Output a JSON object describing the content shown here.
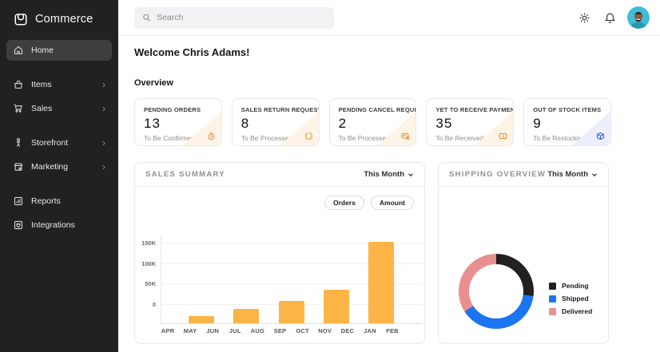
{
  "brand": {
    "name": "Commerce"
  },
  "sidebar": {
    "chevron": "›",
    "items": [
      {
        "label": "Home",
        "icon": "home-icon",
        "active": true,
        "expandable": false
      },
      {
        "label": "Items",
        "icon": "items-icon",
        "active": false,
        "expandable": true
      },
      {
        "label": "Sales",
        "icon": "sales-cart-icon",
        "active": false,
        "expandable": true
      },
      {
        "label": "Storefront",
        "icon": "storefront-icon",
        "active": false,
        "expandable": true
      },
      {
        "label": "Marketing",
        "icon": "marketing-icon",
        "active": false,
        "expandable": true
      },
      {
        "label": "Reports",
        "icon": "reports-icon",
        "active": false,
        "expandable": false
      },
      {
        "label": "Integrations",
        "icon": "integrations-icon",
        "active": false,
        "expandable": false
      }
    ]
  },
  "topbar": {
    "search_placeholder": "Search"
  },
  "main": {
    "welcome": "Welcome Chris Adams!",
    "section_label": "Overview",
    "stat_cards": [
      {
        "title": "PENDING ORDERS",
        "value": "13",
        "subtitle": "To Be Confirmed",
        "icon": "timer-icon",
        "accent": "#EF8F2E",
        "corner_bg": "#FDF3E6"
      },
      {
        "title": "SALES RETURN REQUESTS",
        "value": "8",
        "subtitle": "To Be Processed",
        "icon": "undo-icon",
        "accent": "#EF8F2E",
        "corner_bg": "#FDF3E6"
      },
      {
        "title": "PENDING CANCEL REQUESTS",
        "value": "2",
        "subtitle": "To Be Processed",
        "icon": "cancel-request-icon",
        "accent": "#EF8F2E",
        "corner_bg": "#FDF3E6"
      },
      {
        "title": "YET TO RECEIVE PAYMENTS",
        "value": "35",
        "subtitle": "To Be Received",
        "icon": "payment-card-icon",
        "accent": "#EF8F2E",
        "corner_bg": "#FDF3E6"
      },
      {
        "title": "OUT OF STOCK ITEMS",
        "value": "9",
        "subtitle": "To Be Restocked",
        "icon": "stock-box-icon",
        "accent": "#3D5AD5",
        "corner_bg": "#ECEFFB"
      }
    ]
  },
  "sales_summary": {
    "title": "SALES SUMMARY",
    "period": "This Month",
    "toggles": [
      "Orders",
      "Amount"
    ]
  },
  "shipping_overview": {
    "title": "SHIPPING OVERVIEW",
    "period": "This Month"
  },
  "chart_data": [
    {
      "type": "bar",
      "title": "SALES SUMMARY",
      "x_labels": [
        "APR",
        "MAY",
        "JUN",
        "JUL",
        "AUG",
        "SEP",
        "OCT",
        "NOV",
        "DEC",
        "JAN",
        "FEB"
      ],
      "y_tick_labels": [
        "150K",
        "100K",
        "50K",
        "0"
      ],
      "y_min": -50000,
      "y_max": 170000,
      "grid": true,
      "bar_color": "#FBB445",
      "bars": [
        {
          "from": "MAY",
          "to": "JUN",
          "value": -33000
        },
        {
          "from": "JUL",
          "to": "AUG",
          "value": -14000
        },
        {
          "from": "SEP",
          "to": "OCT",
          "value": 4000
        },
        {
          "from": "NOV",
          "to": "DEC",
          "value": 32000
        },
        {
          "from": "JAN",
          "to": "FEB",
          "value": 150000
        }
      ],
      "note": "bars are rendered rising from the bottom of the plot (y_min = -50K, unlabeled)"
    },
    {
      "type": "pie",
      "donut": true,
      "title": "SHIPPING OVERVIEW",
      "legend_position": "right",
      "segments": [
        {
          "name": "Pending",
          "color": "#212121",
          "percent": 27
        },
        {
          "name": "Shipped",
          "color": "#1B74F2",
          "percent": 39
        },
        {
          "name": "Delivered",
          "color": "#E8908F",
          "percent": 34
        }
      ]
    }
  ]
}
